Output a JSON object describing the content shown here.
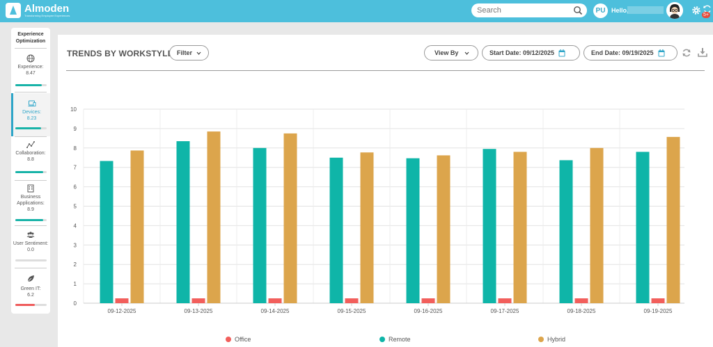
{
  "app": {
    "logo_name": "Almoden",
    "logo_tagline": "Transforming Employee Experiences"
  },
  "header": {
    "search_placeholder": "Search",
    "user_initials": "PU",
    "greeting": "Hello,",
    "notification_count": "5+",
    "brand_color": "#4dbfdc"
  },
  "sidebar": {
    "title": "Experience Optimization",
    "items": [
      {
        "label": "Experience:",
        "value": "8.47",
        "icon": "globe-icon",
        "level": 0.85,
        "color": "#18b3a8"
      },
      {
        "label": "Devices:",
        "value": "8.23",
        "icon": "laptop-icon",
        "level": 0.82,
        "color": "#18b3a8",
        "active": true
      },
      {
        "label": "Collaboration:",
        "value": "8.8",
        "icon": "collaboration-icon",
        "level": 0.88,
        "color": "#18b3a8"
      },
      {
        "label": "Business Applications:",
        "value": "8.9",
        "icon": "building-icon",
        "level": 0.89,
        "color": "#18b3a8"
      },
      {
        "label": "User Sentiment:",
        "value": "0.0",
        "icon": "users-icon",
        "level": 0.0,
        "color": "#18b3a8"
      },
      {
        "label": "Green IT:",
        "value": "6.2",
        "icon": "leaf-icon",
        "level": 0.62,
        "color": "#ef5a5a"
      }
    ]
  },
  "panel": {
    "title": "TRENDS BY WORKSTYLE",
    "filter_label": "Filter",
    "view_by_label": "View By",
    "start_date_label": "Start Date: 09/12/2025",
    "end_date_label": "End Date: 09/19/2025"
  },
  "chart_data": {
    "type": "bar",
    "categories": [
      "09-12-2025",
      "09-13-2025",
      "09-14-2025",
      "09-15-2025",
      "09-16-2025",
      "09-17-2025",
      "09-18-2025",
      "09-19-2025"
    ],
    "series": [
      {
        "name": "Office",
        "color": "#f25f5c",
        "values": [
          0.25,
          0.25,
          0.25,
          0.25,
          0.25,
          0.25,
          0.25,
          0.25
        ]
      },
      {
        "name": "Remote",
        "color": "#0fb5a8",
        "values": [
          7.33,
          8.35,
          8.0,
          7.5,
          7.47,
          7.95,
          7.37,
          7.8
        ]
      },
      {
        "name": "Hybrid",
        "color": "#dca54c",
        "values": [
          7.87,
          8.85,
          8.75,
          7.77,
          7.62,
          7.8,
          8.0,
          8.57
        ]
      }
    ],
    "ylim": [
      0,
      10
    ],
    "yticks": [
      0,
      1,
      2,
      3,
      4,
      5,
      6,
      7,
      8,
      9,
      10
    ],
    "grid": true,
    "legend": "bottom"
  }
}
